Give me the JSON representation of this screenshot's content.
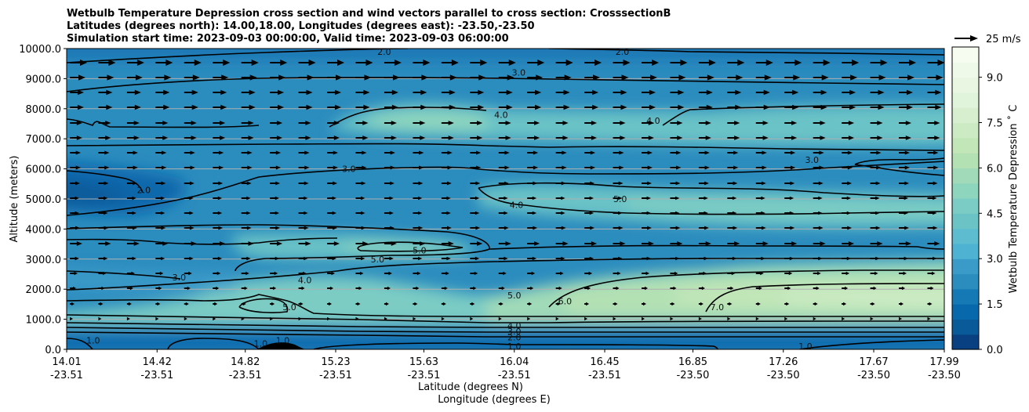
{
  "chart_data": {
    "type": "contour",
    "title_lines": [
      "Wetbulb Temperature Depression cross section and wind vectors parallel to cross section: CrosssectionB",
      "Latitudes (degrees north): 14.00,18.00, Longitudes (degrees east): -23.50,-23.50",
      "Simulation start time: 2023-09-03 00:00:00, Valid time: 2023-09-03 06:00:00"
    ],
    "ylabel": "Altitude (meters)",
    "xlabel_line1": "Latitude (degrees N)",
    "xlabel_line2": "Longitude (degrees E)",
    "ylim": [
      0,
      10000
    ],
    "y_ticks": [
      "0.0",
      "1000.0",
      "2000.0",
      "3000.0",
      "4000.0",
      "5000.0",
      "6000.0",
      "7000.0",
      "8000.0",
      "9000.0",
      "10000.0"
    ],
    "y_tick_values": [
      0,
      1000,
      2000,
      3000,
      4000,
      5000,
      6000,
      7000,
      8000,
      9000,
      10000
    ],
    "x_range": [
      14.01,
      17.99
    ],
    "x_ticks": [
      {
        "lat": "14.01",
        "lon": "-23.51",
        "value": 14.01
      },
      {
        "lat": "14.42",
        "lon": "-23.51",
        "value": 14.42
      },
      {
        "lat": "14.82",
        "lon": "-23.51",
        "value": 14.82
      },
      {
        "lat": "15.23",
        "lon": "-23.51",
        "value": 15.23
      },
      {
        "lat": "15.63",
        "lon": "-23.51",
        "value": 15.63
      },
      {
        "lat": "16.04",
        "lon": "-23.51",
        "value": 16.04
      },
      {
        "lat": "16.45",
        "lon": "-23.51",
        "value": 16.45
      },
      {
        "lat": "16.85",
        "lon": "-23.50",
        "value": 16.85
      },
      {
        "lat": "17.26",
        "lon": "-23.50",
        "value": 17.26
      },
      {
        "lat": "17.67",
        "lon": "-23.50",
        "value": 17.67
      },
      {
        "lat": "17.99",
        "lon": "-23.50",
        "value": 17.99
      }
    ],
    "grid": "horizontal",
    "colorbar": {
      "label": "Wetbulb Temperature Depression ˚ C",
      "range": [
        0,
        10
      ],
      "levels": 20,
      "ticks": [
        "0.0",
        "1.5",
        "3.0",
        "4.5",
        "6.0",
        "7.5",
        "9.0"
      ],
      "tick_values": [
        0,
        1.5,
        3.0,
        4.5,
        6.0,
        7.5,
        9.0
      ],
      "colors": [
        "#084081",
        "#085a99",
        "#0868ac",
        "#1479b5",
        "#2b8cbe",
        "#3a9ac8",
        "#4eb3d3",
        "#5dbccf",
        "#6bc3c6",
        "#7bccc4",
        "#8ed5be",
        "#a0dab8",
        "#b3e1b4",
        "#c2e6b8",
        "#ccebc5",
        "#d7efce",
        "#e0f3db",
        "#e8f6e2",
        "#eff9ea",
        "#f7fcf0"
      ]
    },
    "quiver_key": {
      "label": "25 m/s",
      "value": 25
    },
    "contour_labels": [
      {
        "text": "2.0",
        "lat": 15.45,
        "alt": 9900
      },
      {
        "text": "2.0",
        "lat": 16.53,
        "alt": 9900
      },
      {
        "text": "3.0",
        "lat": 16.06,
        "alt": 9200
      },
      {
        "text": "4.0",
        "lat": 15.98,
        "alt": 7800
      },
      {
        "text": "4.0",
        "lat": 16.67,
        "alt": 7600
      },
      {
        "text": "3.0",
        "lat": 15.29,
        "alt": 6000
      },
      {
        "text": "3.0",
        "lat": 17.39,
        "alt": 6300
      },
      {
        "text": "2.0",
        "lat": 14.36,
        "alt": 5300
      },
      {
        "text": "5.0",
        "lat": 16.52,
        "alt": 5000
      },
      {
        "text": "4.0",
        "lat": 16.05,
        "alt": 4800
      },
      {
        "text": "5.0",
        "lat": 15.42,
        "alt": 3000
      },
      {
        "text": "5.0",
        "lat": 15.61,
        "alt": 3300
      },
      {
        "text": "4.0",
        "lat": 15.09,
        "alt": 2300
      },
      {
        "text": "3.0",
        "lat": 14.52,
        "alt": 2400
      },
      {
        "text": "6.0",
        "lat": 16.27,
        "alt": 1600
      },
      {
        "text": "7.0",
        "lat": 16.96,
        "alt": 1400
      },
      {
        "text": "5.0",
        "lat": 15.02,
        "alt": 1400
      },
      {
        "text": "5.0",
        "lat": 16.04,
        "alt": 1800
      },
      {
        "text": "4.0",
        "lat": 16.04,
        "alt": 800
      },
      {
        "text": "3.0",
        "lat": 16.04,
        "alt": 600
      },
      {
        "text": "2.0",
        "lat": 16.04,
        "alt": 400
      },
      {
        "text": "1.0",
        "lat": 16.04,
        "alt": 100
      },
      {
        "text": "1.0",
        "lat": 17.36,
        "alt": 100
      },
      {
        "text": "1.0",
        "lat": 14.89,
        "alt": 200
      },
      {
        "text": "1.0",
        "lat": 14.99,
        "alt": 300
      },
      {
        "text": "1.0",
        "lat": 14.13,
        "alt": 300
      }
    ]
  }
}
